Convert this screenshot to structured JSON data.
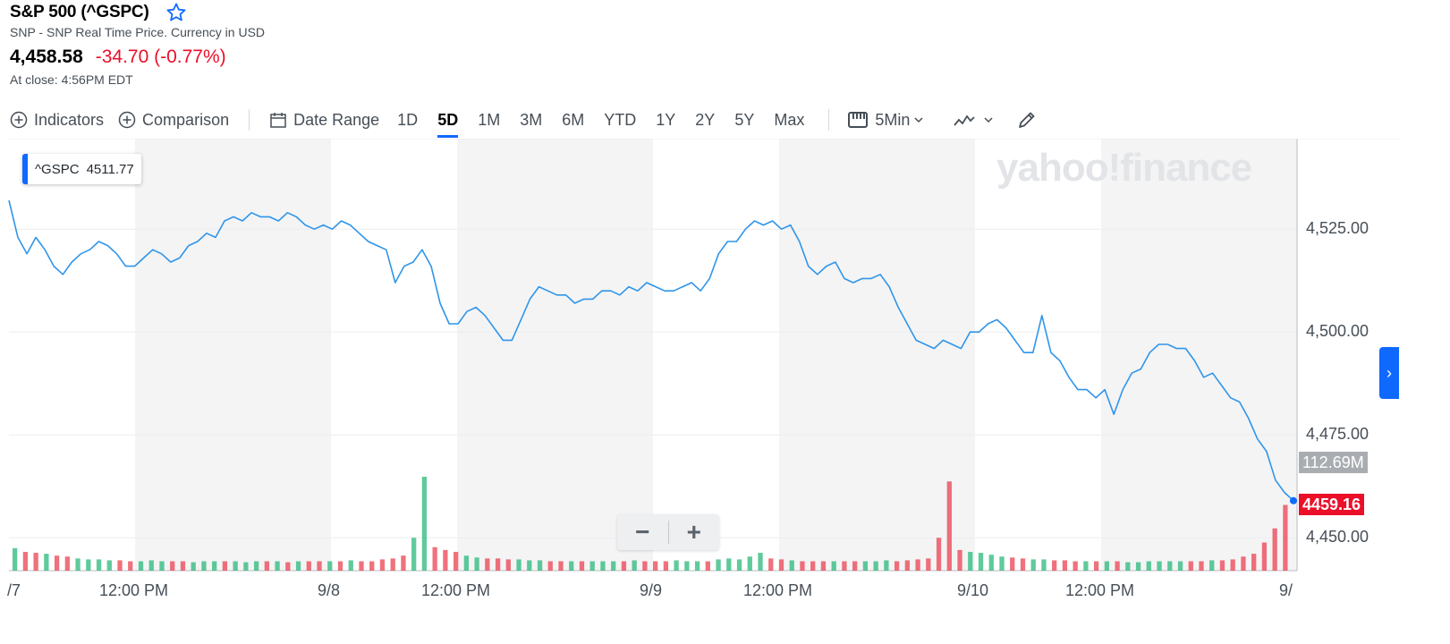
{
  "header": {
    "title": "S&P 500 (^GSPC)",
    "subtitle": "SNP - SNP Real Time Price. Currency in USD",
    "price": "4,458.58",
    "change": "-34.70 (-0.77%)",
    "close_time": "At close: 4:56PM EDT"
  },
  "toolbar": {
    "indicators": "Indicators",
    "comparison": "Comparison",
    "date_range": "Date Range",
    "ranges": [
      "1D",
      "5D",
      "1M",
      "3M",
      "6M",
      "YTD",
      "1Y",
      "2Y",
      "5Y",
      "Max"
    ],
    "active_range": "5D",
    "interval": "5Min"
  },
  "tooltip": {
    "symbol": "^GSPC",
    "value": "4511.77"
  },
  "watermark": "yahoo!finance",
  "zoom": {
    "minus": "−",
    "plus": "+"
  },
  "labels": {
    "volume": "112.69M",
    "last": "4459.16"
  },
  "colors": {
    "line": "#2f95ea",
    "up": "#29b87a",
    "down": "#eb4150",
    "accent": "#0f69ff",
    "negative": "#eb0f29"
  },
  "chart_data": {
    "type": "line",
    "ylim": [
      4442,
      4547
    ],
    "yticks": [
      "4,525.00",
      "4,500.00",
      "4,475.00",
      "4,450.00"
    ],
    "ytick_values": [
      4525,
      4500,
      4475,
      4450
    ],
    "xticks": [
      "/7",
      "12:00 PM",
      "9/8",
      "12:00 PM",
      "9/9",
      "12:00 PM",
      "9/10",
      "12:00 PM",
      "9/"
    ],
    "shaded_hours": [
      "9/7 12:00 PM–9/8",
      "9/8 12:00 PM–9/9",
      "9/9 12:00 PM–9/10",
      "9/10 12:00 PM–9/"
    ],
    "series": [
      {
        "values": [
          4532,
          4523,
          4519,
          4523,
          4520,
          4516,
          4514,
          4517,
          4519,
          4520,
          4522,
          4521,
          4519,
          4516,
          4516,
          4518,
          4520,
          4519,
          4517,
          4518,
          4521,
          4522,
          4524,
          4523,
          4527,
          4528,
          4527,
          4529,
          4528,
          4528,
          4527,
          4529,
          4528,
          4526,
          4525,
          4526,
          4525,
          4527,
          4526,
          4524,
          4522,
          4521,
          4520,
          4512,
          4516,
          4517,
          4520,
          4516,
          4507,
          4502,
          4502,
          4505,
          4506,
          4504,
          4501,
          4498,
          4498,
          4503,
          4508,
          4511,
          4510,
          4509,
          4509,
          4507,
          4508,
          4508,
          4510,
          4510,
          4509,
          4511,
          4510,
          4512,
          4511,
          4510,
          4510,
          4511,
          4512,
          4510,
          4513,
          4519,
          4522,
          4522,
          4525,
          4527,
          4526,
          4527,
          4525,
          4526,
          4522,
          4516,
          4514,
          4516,
          4517,
          4513,
          4512,
          4513,
          4513,
          4514,
          4511,
          4506,
          4502,
          4498,
          4497,
          4496,
          4498,
          4497,
          4496,
          4500,
          4500,
          4502,
          4503,
          4501,
          4498,
          4495,
          4495,
          4504,
          4495,
          4493,
          4489,
          4486,
          4486,
          4484,
          4486,
          4480,
          4486,
          4490,
          4491,
          4495,
          4497,
          4497,
          4496,
          4496,
          4493,
          4489,
          4490,
          4487,
          4484,
          4483,
          4479,
          4474,
          4471,
          4464,
          4461,
          4459
        ]
      }
    ],
    "volume": {
      "label": "112.69M",
      "values": [
        0.24,
        0.2,
        0.19,
        0.18,
        0.16,
        0.15,
        0.13,
        0.12,
        0.12,
        0.11,
        0.11,
        0.1,
        0.1,
        0.11,
        0.1,
        0.1,
        0.1,
        0.09,
        0.1,
        0.1,
        0.1,
        0.1,
        0.09,
        0.1,
        0.1,
        0.1,
        0.09,
        0.1,
        0.1,
        0.1,
        0.1,
        0.1,
        0.11,
        0.1,
        0.1,
        0.12,
        0.13,
        0.16,
        0.35,
        1.0,
        0.25,
        0.22,
        0.2,
        0.16,
        0.14,
        0.13,
        0.13,
        0.12,
        0.12,
        0.11,
        0.11,
        0.1,
        0.1,
        0.1,
        0.1,
        0.1,
        0.1,
        0.1,
        0.1,
        0.11,
        0.1,
        0.1,
        0.1,
        0.11,
        0.1,
        0.1,
        0.1,
        0.12,
        0.13,
        0.12,
        0.15,
        0.19,
        0.13,
        0.12,
        0.11,
        0.1,
        0.1,
        0.1,
        0.1,
        0.1,
        0.1,
        0.1,
        0.1,
        0.11,
        0.1,
        0.11,
        0.12,
        0.13,
        0.35,
        0.95,
        0.22,
        0.2,
        0.19,
        0.17,
        0.15,
        0.14,
        0.13,
        0.12,
        0.12,
        0.11,
        0.11,
        0.1,
        0.1,
        0.1,
        0.1,
        0.1,
        0.09,
        0.09,
        0.1,
        0.1,
        0.1,
        0.1,
        0.1,
        0.1,
        0.11,
        0.11,
        0.12,
        0.15,
        0.18,
        0.3,
        0.45,
        0.7
      ],
      "colors": "mixed up/down"
    }
  }
}
